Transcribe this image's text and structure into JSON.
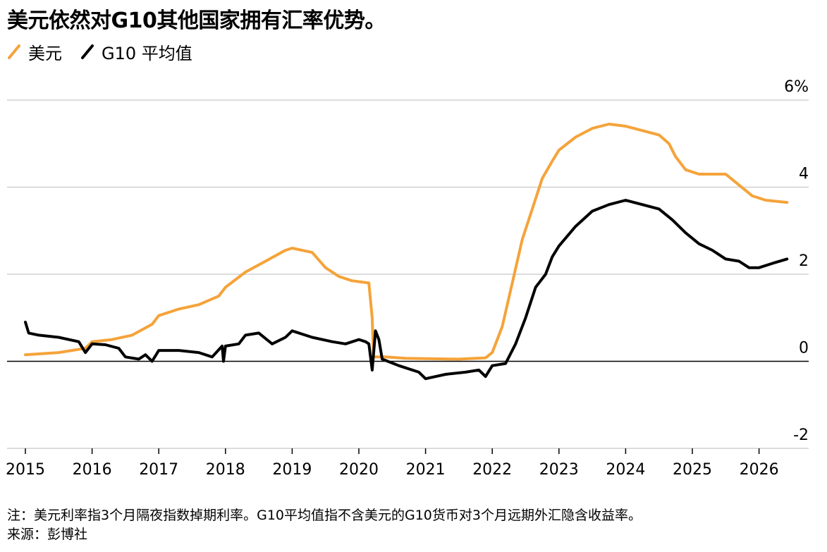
{
  "chart_data": {
    "type": "line",
    "title": "美元依然对G10其他国家拥有汇率优势。",
    "xlabel": "",
    "ylabel": "",
    "y_unit_label": "6%",
    "ylim": [
      -2,
      6
    ],
    "yticks": [
      6,
      4,
      2,
      0,
      -2
    ],
    "ytick_labels": [
      "6%",
      "4",
      "2",
      "0",
      "-2"
    ],
    "xlim": [
      2015,
      2026.5
    ],
    "xticks": [
      2015,
      2016,
      2017,
      2018,
      2019,
      2020,
      2021,
      2022,
      2023,
      2024,
      2025,
      2026
    ],
    "xtick_labels": [
      "2015",
      "2016",
      "2017",
      "2018",
      "2019",
      "2020",
      "2021",
      "2022",
      "2023",
      "2024",
      "2025",
      "2026"
    ],
    "grid": true,
    "legend_placement": "top-left",
    "series": [
      {
        "name": "美元",
        "color": "#f5a33a",
        "points": [
          [
            2015.0,
            0.15
          ],
          [
            2015.5,
            0.2
          ],
          [
            2015.9,
            0.3
          ],
          [
            2016.0,
            0.45
          ],
          [
            2016.3,
            0.5
          ],
          [
            2016.6,
            0.6
          ],
          [
            2016.9,
            0.85
          ],
          [
            2017.0,
            1.05
          ],
          [
            2017.3,
            1.2
          ],
          [
            2017.6,
            1.3
          ],
          [
            2017.9,
            1.5
          ],
          [
            2018.0,
            1.7
          ],
          [
            2018.3,
            2.05
          ],
          [
            2018.6,
            2.3
          ],
          [
            2018.9,
            2.55
          ],
          [
            2019.0,
            2.6
          ],
          [
            2019.3,
            2.5
          ],
          [
            2019.5,
            2.15
          ],
          [
            2019.7,
            1.95
          ],
          [
            2019.9,
            1.85
          ],
          [
            2020.15,
            1.8
          ],
          [
            2020.2,
            1.0
          ],
          [
            2020.22,
            0.1
          ],
          [
            2020.4,
            0.1
          ],
          [
            2020.7,
            0.07
          ],
          [
            2021.0,
            0.06
          ],
          [
            2021.5,
            0.05
          ],
          [
            2021.9,
            0.08
          ],
          [
            2022.0,
            0.2
          ],
          [
            2022.15,
            0.8
          ],
          [
            2022.3,
            1.8
          ],
          [
            2022.45,
            2.8
          ],
          [
            2022.6,
            3.5
          ],
          [
            2022.75,
            4.2
          ],
          [
            2022.9,
            4.6
          ],
          [
            2023.0,
            4.85
          ],
          [
            2023.25,
            5.15
          ],
          [
            2023.5,
            5.35
          ],
          [
            2023.75,
            5.45
          ],
          [
            2024.0,
            5.4
          ],
          [
            2024.25,
            5.3
          ],
          [
            2024.5,
            5.2
          ],
          [
            2024.65,
            5.0
          ],
          [
            2024.75,
            4.7
          ],
          [
            2024.9,
            4.4
          ],
          [
            2025.1,
            4.3
          ],
          [
            2025.3,
            4.3
          ],
          [
            2025.5,
            4.3
          ],
          [
            2025.7,
            4.05
          ],
          [
            2025.9,
            3.8
          ],
          [
            2026.1,
            3.7
          ],
          [
            2026.42,
            3.65
          ]
        ]
      },
      {
        "name": "G10 平均值",
        "color": "#000000",
        "points": [
          [
            2015.0,
            0.9
          ],
          [
            2015.05,
            0.65
          ],
          [
            2015.2,
            0.6
          ],
          [
            2015.5,
            0.55
          ],
          [
            2015.8,
            0.45
          ],
          [
            2015.9,
            0.2
          ],
          [
            2016.0,
            0.4
          ],
          [
            2016.2,
            0.38
          ],
          [
            2016.4,
            0.3
          ],
          [
            2016.5,
            0.1
          ],
          [
            2016.7,
            0.05
          ],
          [
            2016.8,
            0.15
          ],
          [
            2016.9,
            0.0
          ],
          [
            2017.0,
            0.25
          ],
          [
            2017.3,
            0.25
          ],
          [
            2017.6,
            0.2
          ],
          [
            2017.8,
            0.1
          ],
          [
            2017.95,
            0.35
          ],
          [
            2017.97,
            0.0
          ],
          [
            2018.0,
            0.35
          ],
          [
            2018.2,
            0.4
          ],
          [
            2018.3,
            0.6
          ],
          [
            2018.5,
            0.65
          ],
          [
            2018.7,
            0.4
          ],
          [
            2018.9,
            0.55
          ],
          [
            2019.0,
            0.7
          ],
          [
            2019.3,
            0.55
          ],
          [
            2019.6,
            0.45
          ],
          [
            2019.8,
            0.4
          ],
          [
            2020.0,
            0.5
          ],
          [
            2020.1,
            0.45
          ],
          [
            2020.15,
            0.4
          ],
          [
            2020.2,
            -0.2
          ],
          [
            2020.25,
            0.7
          ],
          [
            2020.3,
            0.5
          ],
          [
            2020.35,
            0.05
          ],
          [
            2020.6,
            -0.1
          ],
          [
            2020.9,
            -0.25
          ],
          [
            2021.0,
            -0.4
          ],
          [
            2021.3,
            -0.3
          ],
          [
            2021.6,
            -0.25
          ],
          [
            2021.8,
            -0.2
          ],
          [
            2021.9,
            -0.35
          ],
          [
            2022.0,
            -0.1
          ],
          [
            2022.2,
            -0.05
          ],
          [
            2022.35,
            0.4
          ],
          [
            2022.5,
            1.0
          ],
          [
            2022.65,
            1.7
          ],
          [
            2022.8,
            2.0
          ],
          [
            2022.9,
            2.4
          ],
          [
            2023.0,
            2.65
          ],
          [
            2023.25,
            3.1
          ],
          [
            2023.5,
            3.45
          ],
          [
            2023.75,
            3.6
          ],
          [
            2024.0,
            3.7
          ],
          [
            2024.25,
            3.6
          ],
          [
            2024.5,
            3.5
          ],
          [
            2024.7,
            3.25
          ],
          [
            2024.9,
            2.95
          ],
          [
            2025.1,
            2.7
          ],
          [
            2025.3,
            2.55
          ],
          [
            2025.5,
            2.35
          ],
          [
            2025.7,
            2.3
          ],
          [
            2025.85,
            2.15
          ],
          [
            2026.0,
            2.15
          ],
          [
            2026.2,
            2.25
          ],
          [
            2026.42,
            2.35
          ]
        ]
      }
    ]
  },
  "footnote": "注：美元利率指3个月隔夜指数掉期利率。G10平均值指不含美元的G10货币对3个月远期外汇隐含收益率。",
  "source": "来源：彭博社"
}
